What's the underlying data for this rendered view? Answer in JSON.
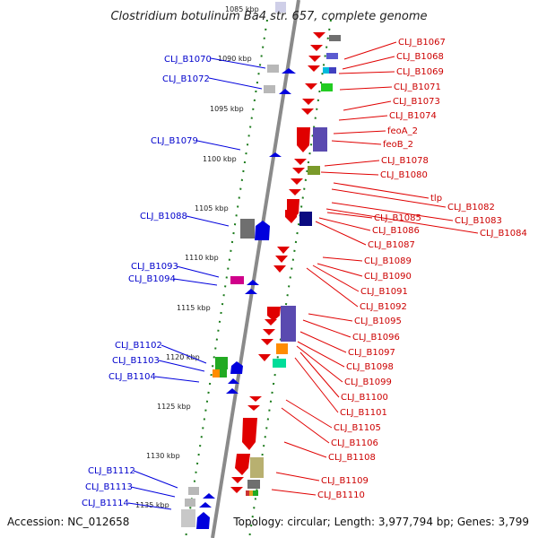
{
  "title": "Clostridium botulinum Ba4 str. 657, complete genome",
  "accession": "Accession: NC_012658",
  "topology": "Topology: circular; Length: 3,977,794 bp; Genes: 3,799",
  "colors": {
    "forward": "#e00000",
    "reverse": "#0000dd",
    "backbone": "#8a8a8a",
    "tick": "#1a7a1a"
  },
  "scale_marks": [
    "1085 kbp",
    "1090 kbp",
    "1095 kbp",
    "1100 kbp",
    "1105 kbp",
    "1110 kbp",
    "1115 kbp",
    "1120 kbp",
    "1125 kbp",
    "1130 kbp",
    "1135 kbp"
  ],
  "left_labels": [
    "CLJ_B1070",
    "CLJ_B1072",
    "CLJ_B1079",
    "CLJ_B1088",
    "CLJ_B1093",
    "CLJ_B1094",
    "CLJ_B1102",
    "CLJ_B1103",
    "CLJ_B1104",
    "CLJ_B1112",
    "CLJ_B1113",
    "CLJ_B1114"
  ],
  "right_labels": [
    "CLJ_B1067",
    "CLJ_B1068",
    "CLJ_B1069",
    "CLJ_B1071",
    "CLJ_B1073",
    "CLJ_B1074",
    "feoA_2",
    "feoB_2",
    "CLJ_B1078",
    "CLJ_B1080",
    "tlp",
    "CLJ_B1082",
    "CLJ_B1083",
    "CLJ_B1084",
    "CLJ_B1085",
    "CLJ_B1086",
    "CLJ_B1087",
    "CLJ_B1089",
    "CLJ_B1090",
    "CLJ_B1091",
    "CLJ_B1092",
    "CLJ_B1095",
    "CLJ_B1096",
    "CLJ_B1097",
    "CLJ_B1098",
    "CLJ_B1099",
    "CLJ_B1100",
    "CLJ_B1101",
    "CLJ_B1105",
    "CLJ_B1106",
    "CLJ_B1108",
    "CLJ_B1109",
    "CLJ_B1110"
  ]
}
